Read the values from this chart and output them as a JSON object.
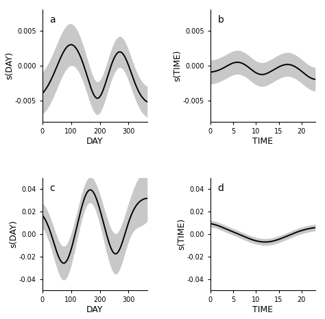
{
  "panels": [
    {
      "label": "a",
      "xlabel": "DAY",
      "ylabel": "s(DAY)",
      "xlim": [
        0,
        365
      ],
      "ylim": [
        -0.008,
        0.008
      ],
      "yticks": [
        -0.005,
        0.0,
        0.005
      ],
      "ytick_labels": [
        "-0.005",
        "0.000",
        "0.005"
      ],
      "xticks": [
        0,
        100,
        200,
        300
      ],
      "curve_type": "day_a"
    },
    {
      "label": "b",
      "xlabel": "TIME",
      "ylabel": "s(TIME)",
      "xlim": [
        0,
        23
      ],
      "ylim": [
        -0.008,
        0.008
      ],
      "yticks": [
        -0.005,
        0.0,
        0.005
      ],
      "ytick_labels": [
        "-0.005",
        "0.000",
        "0.005"
      ],
      "xticks": [
        0,
        5,
        10,
        15,
        20
      ],
      "curve_type": "time_b"
    },
    {
      "label": "c",
      "xlabel": "DAY",
      "ylabel": "s(DAY)",
      "xlim": [
        0,
        365
      ],
      "ylim": [
        -0.05,
        0.05
      ],
      "yticks": [
        -0.04,
        -0.02,
        0.0,
        0.02,
        0.04
      ],
      "ytick_labels": [
        "-0.04",
        "-0.02",
        "0.00",
        "0.02",
        "0.04"
      ],
      "xticks": [
        0,
        100,
        200,
        300
      ],
      "curve_type": "day_c"
    },
    {
      "label": "d",
      "xlabel": "TIME",
      "ylabel": "s(TIME)",
      "xlim": [
        0,
        23
      ],
      "ylim": [
        -0.05,
        0.05
      ],
      "yticks": [
        -0.04,
        -0.02,
        0.0,
        0.02,
        0.04
      ],
      "ytick_labels": [
        "-0.04",
        "-0.02",
        "0.00",
        "0.02",
        "0.04"
      ],
      "xticks": [
        0,
        5,
        10,
        15,
        20
      ],
      "curve_type": "time_d"
    }
  ],
  "line_color": "#000000",
  "fill_color": "#c8c8c8",
  "background_color": "#ffffff",
  "line_width": 1.4
}
